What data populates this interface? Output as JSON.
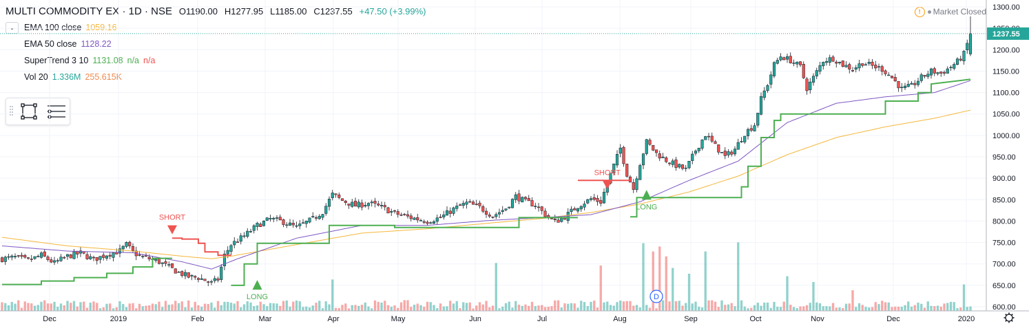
{
  "header": {
    "symbol": "MULTI COMMODITY EX · 1D · NSE",
    "open": "O1190.00",
    "high": "H1277.95",
    "low": "L1185.00",
    "close": "C1237.55",
    "change": "+47.50 (+3.99%)"
  },
  "legend": {
    "ema100": {
      "label": "EMA 100 close",
      "value": "1059.16",
      "color": "#f4b73b"
    },
    "ema50": {
      "label": "EMA 50 close",
      "value": "1128.22",
      "color": "#7e57c2"
    },
    "supertrend": {
      "label": "SuperTrend 3 10",
      "value": "1131.08",
      "na1": "n/a",
      "na2": "n/a"
    },
    "vol": {
      "label": "Vol 20",
      "value": "1.336M",
      "ma": "255.615K"
    }
  },
  "status": {
    "market": "Market Closed",
    "warn_icon": "!"
  },
  "colors": {
    "up": "#26a69a",
    "down": "#ef5350",
    "supertrend_up": "#4caf50",
    "supertrend_down": "#ef5350",
    "ema100": "#f4b73b",
    "ema50": "#7e57c2"
  },
  "chart_data": {
    "type": "candlestick",
    "price_axis": {
      "ticks": [
        600,
        650,
        700,
        750,
        800,
        850,
        900,
        950,
        1000,
        1050,
        1100,
        1150,
        1200,
        1250,
        1300
      ],
      "ylim": [
        600,
        1300
      ],
      "last_price": "1237.55"
    },
    "time_axis": [
      "Dec",
      "2019",
      "Feb",
      "Mar",
      "Apr",
      "May",
      "Jun",
      "Jul",
      "Aug",
      "Sep",
      "Oct",
      "Nov",
      "Dec",
      "2020"
    ],
    "signals": [
      {
        "label": "SHORT",
        "month": "Jan",
        "price": 790
      },
      {
        "label": "LONG",
        "month": "Mar",
        "price": 640
      },
      {
        "label": "SHORT",
        "month": "Jul",
        "price": 895
      },
      {
        "label": "LONG",
        "month": "Aug",
        "price": 850
      }
    ],
    "dividend_marker": "D",
    "price_path": [
      [
        0,
        712
      ],
      [
        4,
        715
      ],
      [
        8,
        708
      ],
      [
        12,
        720
      ],
      [
        16,
        702
      ],
      [
        20,
        718
      ],
      [
        24,
        725
      ],
      [
        28,
        710
      ],
      [
        32,
        722
      ],
      [
        36,
        730
      ],
      [
        38,
        745
      ],
      [
        40,
        728
      ],
      [
        42,
        718
      ],
      [
        45,
        712
      ],
      [
        48,
        705
      ],
      [
        51,
        692
      ],
      [
        54,
        680
      ],
      [
        57,
        670
      ],
      [
        60,
        668
      ],
      [
        62,
        662
      ],
      [
        64,
        655
      ],
      [
        66,
        664
      ],
      [
        68,
        720
      ],
      [
        70,
        745
      ],
      [
        74,
        765
      ],
      [
        78,
        790
      ],
      [
        82,
        805
      ],
      [
        86,
        798
      ],
      [
        90,
        785
      ],
      [
        95,
        805
      ],
      [
        98,
        822
      ],
      [
        101,
        862
      ],
      [
        104,
        848
      ],
      [
        108,
        836
      ],
      [
        112,
        842
      ],
      [
        116,
        832
      ],
      [
        120,
        818
      ],
      [
        125,
        808
      ],
      [
        130,
        800
      ],
      [
        134,
        808
      ],
      [
        138,
        828
      ],
      [
        142,
        842
      ],
      [
        146,
        832
      ],
      [
        150,
        812
      ],
      [
        154,
        830
      ],
      [
        157,
        858
      ],
      [
        160,
        845
      ],
      [
        163,
        838
      ],
      [
        166,
        815
      ],
      [
        169,
        798
      ],
      [
        172,
        810
      ],
      [
        176,
        835
      ],
      [
        180,
        852
      ],
      [
        183,
        845
      ],
      [
        185,
        888
      ],
      [
        187,
        930
      ],
      [
        189,
        970
      ],
      [
        191,
        910
      ],
      [
        193,
        875
      ],
      [
        195,
        935
      ],
      [
        197,
        985
      ],
      [
        200,
        958
      ],
      [
        203,
        942
      ],
      [
        206,
        930
      ],
      [
        209,
        920
      ],
      [
        212,
        965
      ],
      [
        215,
        1002
      ],
      [
        218,
        975
      ],
      [
        221,
        950
      ],
      [
        224,
        968
      ],
      [
        227,
        1005
      ],
      [
        230,
        1025
      ],
      [
        232,
        1085
      ],
      [
        234,
        1120
      ],
      [
        236,
        1165
      ],
      [
        238,
        1185
      ],
      [
        241,
        1175
      ],
      [
        244,
        1160
      ],
      [
        246,
        1110
      ],
      [
        248,
        1135
      ],
      [
        251,
        1175
      ],
      [
        254,
        1180
      ],
      [
        257,
        1165
      ],
      [
        260,
        1155
      ],
      [
        263,
        1170
      ],
      [
        266,
        1162
      ],
      [
        269,
        1155
      ],
      [
        272,
        1135
      ],
      [
        275,
        1108
      ],
      [
        278,
        1115
      ],
      [
        281,
        1135
      ],
      [
        284,
        1150
      ],
      [
        287,
        1145
      ],
      [
        290,
        1160
      ],
      [
        292,
        1172
      ],
      [
        294,
        1190
      ],
      [
        296,
        1237
      ]
    ],
    "ema100_path": [
      [
        0,
        762
      ],
      [
        20,
        742
      ],
      [
        40,
        730
      ],
      [
        55,
        718
      ],
      [
        64,
        712
      ],
      [
        70,
        718
      ],
      [
        90,
        745
      ],
      [
        110,
        772
      ],
      [
        130,
        782
      ],
      [
        150,
        796
      ],
      [
        165,
        806
      ],
      [
        180,
        820
      ],
      [
        195,
        840
      ],
      [
        210,
        868
      ],
      [
        225,
        905
      ],
      [
        240,
        955
      ],
      [
        255,
        995
      ],
      [
        270,
        1020
      ],
      [
        285,
        1040
      ],
      [
        296,
        1059
      ]
    ],
    "ema50_path": [
      [
        0,
        742
      ],
      [
        20,
        730
      ],
      [
        40,
        726
      ],
      [
        55,
        705
      ],
      [
        64,
        688
      ],
      [
        72,
        712
      ],
      [
        90,
        760
      ],
      [
        110,
        790
      ],
      [
        130,
        790
      ],
      [
        150,
        802
      ],
      [
        165,
        808
      ],
      [
        180,
        815
      ],
      [
        195,
        845
      ],
      [
        210,
        895
      ],
      [
        225,
        940
      ],
      [
        240,
        1030
      ],
      [
        255,
        1075
      ],
      [
        270,
        1090
      ],
      [
        285,
        1100
      ],
      [
        296,
        1128
      ]
    ],
    "supertrend_segments": [
      {
        "trend": "up",
        "points": [
          [
            0,
            652
          ],
          [
            12,
            652
          ],
          [
            12,
            660
          ],
          [
            22,
            660
          ],
          [
            22,
            668
          ],
          [
            32,
            668
          ],
          [
            32,
            678
          ],
          [
            40,
            678
          ],
          [
            40,
            693
          ],
          [
            46,
            693
          ],
          [
            46,
            713
          ],
          [
            52,
            713
          ]
        ]
      },
      {
        "trend": "down",
        "points": [
          [
            52,
            760
          ],
          [
            55,
            760
          ],
          [
            55,
            758
          ],
          [
            60,
            758
          ],
          [
            60,
            748
          ],
          [
            62,
            748
          ],
          [
            62,
            728
          ],
          [
            66,
            728
          ],
          [
            66,
            720
          ],
          [
            70,
            720
          ]
        ]
      },
      {
        "trend": "up",
        "points": [
          [
            70,
            650
          ],
          [
            74,
            650
          ],
          [
            74,
            700
          ],
          [
            78,
            700
          ],
          [
            78,
            748
          ],
          [
            100,
            748
          ],
          [
            100,
            790
          ],
          [
            120,
            790
          ],
          [
            120,
            785
          ],
          [
            158,
            785
          ],
          [
            158,
            808
          ],
          [
            176,
            808
          ]
        ]
      },
      {
        "trend": "down",
        "points": [
          [
            176,
            895
          ],
          [
            192,
            895
          ],
          [
            192,
            895
          ]
        ]
      },
      {
        "trend": "up",
        "points": [
          [
            192,
            810
          ],
          [
            194,
            810
          ],
          [
            194,
            855
          ],
          [
            226,
            855
          ],
          [
            226,
            880
          ],
          [
            228,
            880
          ],
          [
            228,
            928
          ],
          [
            232,
            928
          ],
          [
            232,
            995
          ],
          [
            236,
            995
          ],
          [
            236,
            1035
          ],
          [
            238,
            1035
          ],
          [
            238,
            1050
          ],
          [
            270,
            1050
          ],
          [
            270,
            1080
          ],
          [
            280,
            1080
          ],
          [
            280,
            1100
          ],
          [
            284,
            1100
          ],
          [
            284,
            1120
          ],
          [
            296,
            1131
          ]
        ]
      }
    ],
    "volume_spikes": [
      [
        101,
        0.38
      ],
      [
        151,
        0.58
      ],
      [
        183,
        0.55
      ],
      [
        196,
        0.82
      ],
      [
        199,
        0.72
      ],
      [
        201,
        0.78
      ],
      [
        203,
        0.66
      ],
      [
        205,
        0.52
      ],
      [
        210,
        0.45
      ],
      [
        215,
        0.72
      ],
      [
        225,
        0.83
      ],
      [
        240,
        0.42
      ],
      [
        248,
        0.35
      ],
      [
        260,
        0.25
      ],
      [
        294,
        0.32
      ]
    ]
  }
}
